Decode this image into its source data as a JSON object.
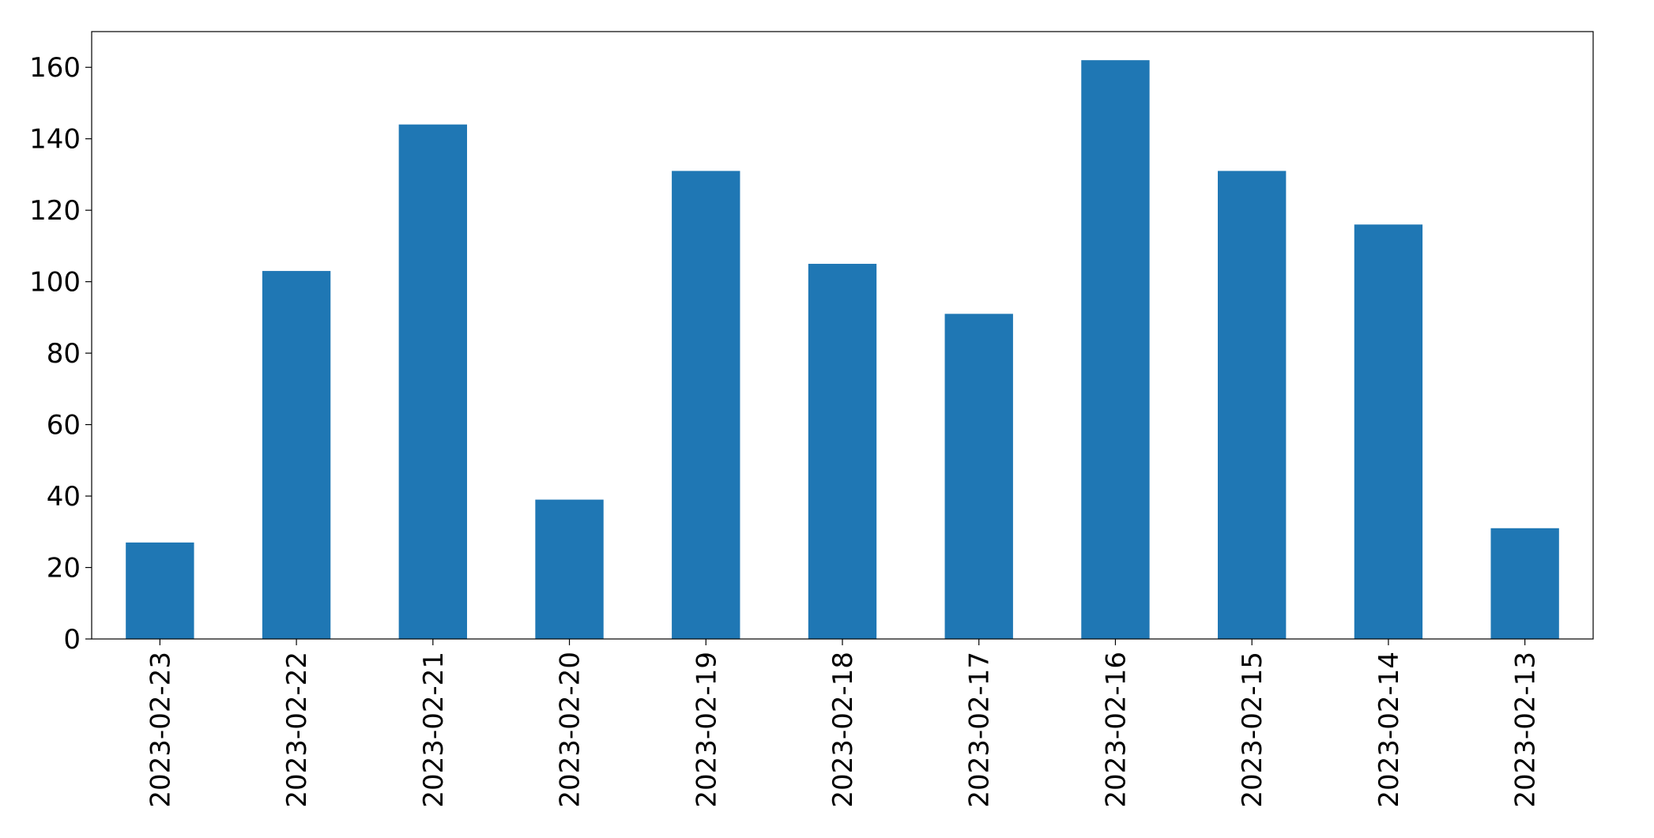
{
  "chart_data": {
    "type": "bar",
    "categories": [
      "2023-02-23",
      "2023-02-22",
      "2023-02-21",
      "2023-02-20",
      "2023-02-19",
      "2023-02-18",
      "2023-02-17",
      "2023-02-16",
      "2023-02-15",
      "2023-02-14",
      "2023-02-13"
    ],
    "values": [
      27,
      103,
      144,
      39,
      131,
      105,
      91,
      162,
      131,
      116,
      31
    ],
    "color": "#1f77b4",
    "ylim": [
      0,
      170
    ],
    "yticks": [
      0,
      20,
      40,
      60,
      80,
      100,
      120,
      140,
      160
    ],
    "grid": false
  }
}
